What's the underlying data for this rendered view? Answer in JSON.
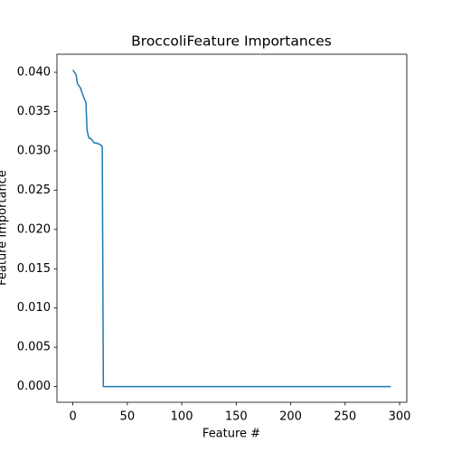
{
  "chart_data": {
    "type": "line",
    "title": "BroccoliFeature Importances",
    "x_label": "Feature #",
    "y_label": "Feature Importance",
    "x": [
      0,
      1,
      2,
      3,
      4,
      5,
      6,
      7,
      8,
      9,
      10,
      11,
      12,
      13,
      14,
      15,
      16,
      17,
      18,
      19,
      20,
      21,
      22,
      23,
      24,
      25,
      26,
      27,
      28,
      292
    ],
    "series": [
      {
        "name": "Feature Importance",
        "color": "#1f77b4",
        "values": [
          0.0403,
          0.0401,
          0.0399,
          0.0397,
          0.0387,
          0.0384,
          0.0382,
          0.038,
          0.0376,
          0.0372,
          0.0368,
          0.0365,
          0.0362,
          0.0327,
          0.032,
          0.0316,
          0.0316,
          0.0315,
          0.0313,
          0.0311,
          0.031,
          0.031,
          0.031,
          0.0309,
          0.0309,
          0.0308,
          0.0307,
          0.0305,
          0.0,
          0.0
        ]
      }
    ],
    "xlim": [
      -14.6,
      306.6
    ],
    "ylim": [
      -0.002,
      0.0423
    ],
    "xticks": [
      0,
      50,
      100,
      150,
      200,
      250,
      300
    ],
    "yticks": [
      {
        "value": 0,
        "label": "0.000"
      },
      {
        "value": 0.005,
        "label": "0.005"
      },
      {
        "value": 0.01,
        "label": "0.010"
      },
      {
        "value": 0.015,
        "label": "0.015"
      },
      {
        "value": 0.02,
        "label": "0.020"
      },
      {
        "value": 0.025,
        "label": "0.025"
      },
      {
        "value": 0.03,
        "label": "0.030"
      },
      {
        "value": 0.035,
        "label": "0.035"
      },
      {
        "value": 0.04,
        "label": "0.040"
      }
    ],
    "grid": false
  }
}
